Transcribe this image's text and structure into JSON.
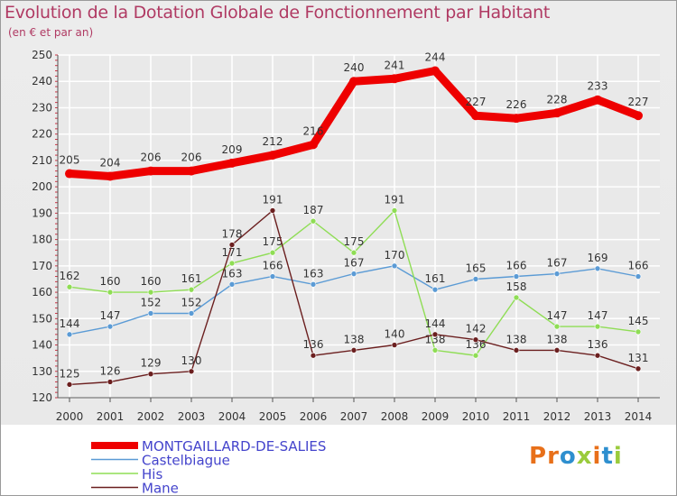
{
  "header": {
    "title": "Evolution de la Dotation Globale de Fonctionnement par Habitant",
    "subtitle": "(en € et par an)"
  },
  "brand": {
    "text": "Proxiti",
    "letters": [
      "P",
      "r",
      "o",
      "x",
      "i",
      "t",
      "i"
    ],
    "colors": [
      "#e8701a",
      "#e8701a",
      "#2e8fcf",
      "#9acb3c",
      "#e8701a",
      "#2e8fcf",
      "#9acb3c"
    ]
  },
  "colors": {
    "title": "#b03a63",
    "grid": "#ffffff",
    "axis": "#555555",
    "plot_bg": "#e9e9e9"
  },
  "chart_data": {
    "type": "line",
    "title": "Evolution de la Dotation Globale de Fonctionnement par Habitant",
    "subtitle": "(en € et par an)",
    "xlabel": "",
    "ylabel": "",
    "ylim": [
      120,
      250
    ],
    "yticks": [
      120,
      130,
      140,
      150,
      160,
      170,
      180,
      190,
      200,
      210,
      220,
      230,
      240,
      250
    ],
    "grid": true,
    "legend_position": "bottom-left",
    "x": [
      "2000",
      "2001",
      "2002",
      "2003",
      "2004",
      "2005",
      "2006",
      "2007",
      "2008",
      "2009",
      "2010",
      "2011",
      "2012",
      "2013",
      "2014"
    ],
    "series": [
      {
        "name": "MONTGAILLARD-DE-SALIES",
        "color": "#ee0000",
        "emphasis": true,
        "values": [
          205,
          204,
          206,
          206,
          209,
          212,
          216,
          240,
          241,
          244,
          227,
          226,
          228,
          233,
          227
        ]
      },
      {
        "name": "Castelbiague",
        "color": "#5b9bd5",
        "emphasis": false,
        "values": [
          144,
          147,
          152,
          152,
          163,
          166,
          163,
          167,
          170,
          161,
          165,
          166,
          167,
          169,
          166
        ]
      },
      {
        "name": "His",
        "color": "#8fdd55",
        "emphasis": false,
        "values": [
          162,
          160,
          160,
          161,
          171,
          175,
          187,
          175,
          191,
          138,
          136,
          158,
          147,
          147,
          145
        ]
      },
      {
        "name": "Mane",
        "color": "#6b1f1f",
        "emphasis": false,
        "values": [
          125,
          126,
          129,
          130,
          178,
          191,
          136,
          138,
          140,
          144,
          142,
          138,
          138,
          136,
          131
        ]
      }
    ]
  }
}
